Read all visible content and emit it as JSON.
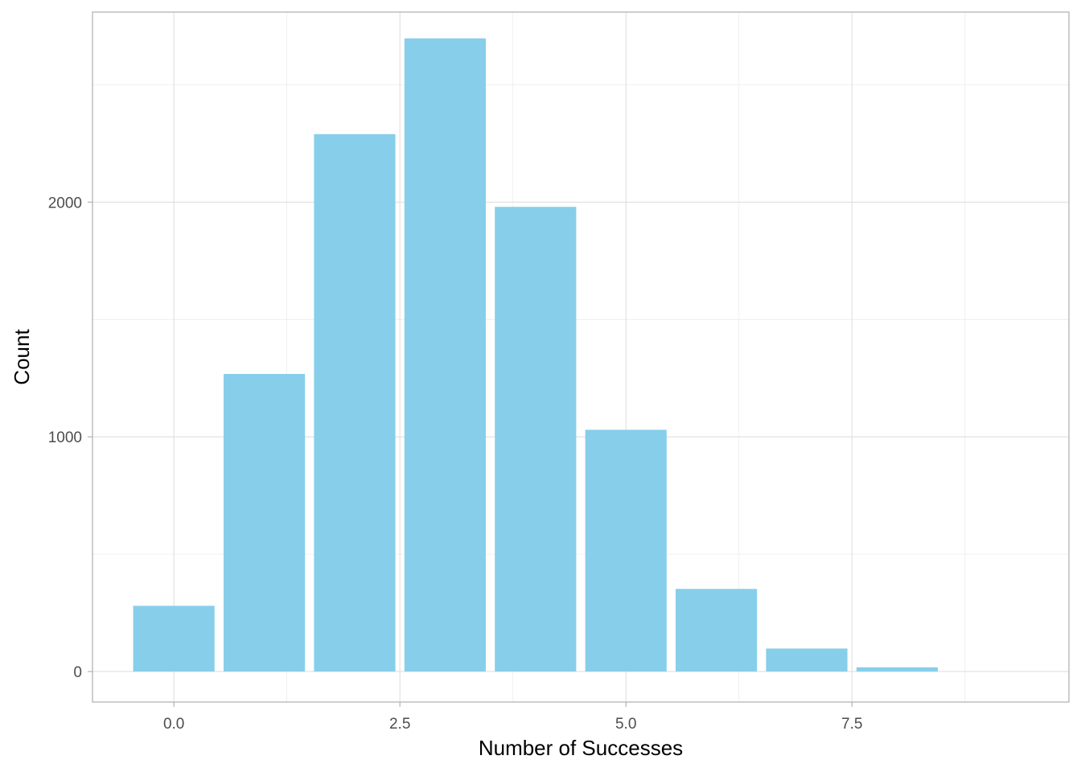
{
  "chart_data": {
    "type": "bar",
    "title": "",
    "xlabel": "Number of Successes",
    "ylabel": "Count",
    "x": [
      0,
      1,
      2,
      3,
      4,
      5,
      6,
      7,
      8
    ],
    "values": [
      280,
      1268,
      2290,
      2698,
      1980,
      1030,
      352,
      98,
      18
    ],
    "xlim": [
      -0.9,
      9.9
    ],
    "ylim": [
      -130,
      2810
    ],
    "x_ticks": [
      0,
      2.5,
      5,
      7.5
    ],
    "x_tick_labels": [
      "0.0",
      "2.5",
      "5.0",
      "7.5"
    ],
    "y_ticks": [
      0,
      1000,
      2000
    ],
    "y_tick_labels": [
      "0",
      "1000",
      "2000"
    ],
    "grid": true,
    "legend": "none",
    "bar_color": "#87CEEB"
  }
}
